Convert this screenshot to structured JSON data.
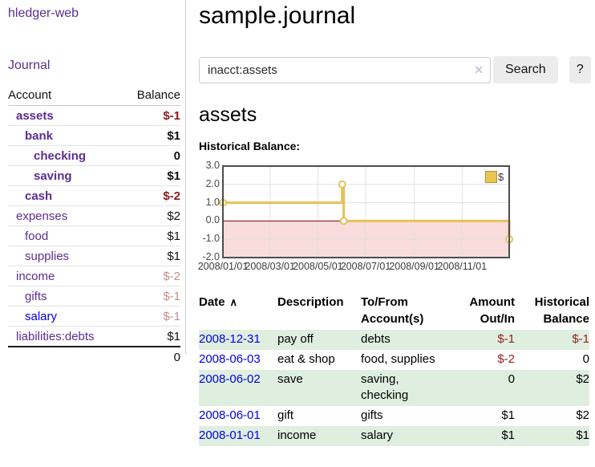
{
  "app": {
    "brand": "hledger-web",
    "nav": {
      "journal": "Journal"
    }
  },
  "sidebar": {
    "headers": {
      "account": "Account",
      "balance": "Balance"
    },
    "accounts": [
      {
        "name": "assets",
        "balance": "$-1",
        "indent": 1,
        "bold": true,
        "balance_style": "negative-strong"
      },
      {
        "name": "bank",
        "balance": "$1",
        "indent": 2,
        "bold": true,
        "balance_style": "normal"
      },
      {
        "name": "checking",
        "balance": "0",
        "indent": 3,
        "bold": true,
        "balance_style": "normal"
      },
      {
        "name": "saving",
        "balance": "$1",
        "indent": 3,
        "bold": true,
        "balance_style": "normal"
      },
      {
        "name": "cash",
        "balance": "$-2",
        "indent": 2,
        "bold": true,
        "balance_style": "negative-strong"
      },
      {
        "name": "expenses",
        "balance": "$2",
        "indent": 1,
        "bold": false,
        "balance_style": "normal"
      },
      {
        "name": "food",
        "balance": "$1",
        "indent": 2,
        "bold": false,
        "balance_style": "normal"
      },
      {
        "name": "supplies",
        "balance": "$1",
        "indent": 2,
        "bold": false,
        "balance_style": "normal"
      },
      {
        "name": "income",
        "balance": "$-2",
        "indent": 1,
        "bold": false,
        "balance_style": "negative-faded"
      },
      {
        "name": "gifts",
        "balance": "$-1",
        "indent": 2,
        "bold": false,
        "balance_style": "negative-faded"
      },
      {
        "name": "salary",
        "balance": "$-1",
        "indent": 2,
        "bold": false,
        "balance_style": "negative-faded",
        "link_state": "unvisited"
      },
      {
        "name": "liabilities:debts",
        "balance": "$1",
        "indent": 1,
        "bold": false,
        "balance_style": "normal"
      }
    ],
    "total": "0"
  },
  "header": {
    "title": "sample.journal"
  },
  "search": {
    "value": "inacct:assets",
    "clear_icon": "✕",
    "button_label": "Search",
    "help_label": "?"
  },
  "account_page": {
    "heading": "assets",
    "chart_title": "Historical Balance:"
  },
  "chart_data": {
    "type": "line",
    "title": "Historical Balance:",
    "step": "after",
    "series": [
      {
        "name": "$",
        "color": "#e5c257",
        "points": [
          {
            "date": "2008/01/01",
            "day": 0,
            "value": 1
          },
          {
            "date": "2008/06/01",
            "day": 152,
            "value": 2
          },
          {
            "date": "2008/06/03",
            "day": 154,
            "value": 0
          },
          {
            "date": "2008/12/31",
            "day": 365,
            "value": -1
          }
        ]
      }
    ],
    "ylim": [
      -2,
      3
    ],
    "yticks": [
      {
        "value": 3,
        "label": "3.0"
      },
      {
        "value": 2,
        "label": "2.0"
      },
      {
        "value": 1,
        "label": "1.0"
      },
      {
        "value": 0,
        "label": "0.0"
      },
      {
        "value": -1,
        "label": "-1.0"
      },
      {
        "value": -2,
        "label": "-2.0"
      }
    ],
    "xticks": [
      {
        "day": 0,
        "label": "2008/01/01"
      },
      {
        "day": 60,
        "label": "2008/03/01"
      },
      {
        "day": 121,
        "label": "2008/05/01"
      },
      {
        "day": 182,
        "label": "2008/07/01"
      },
      {
        "day": 244,
        "label": "2008/09/01"
      },
      {
        "day": 305,
        "label": "2008/11/01"
      }
    ],
    "x_span_days": 365,
    "grid": true,
    "legend": {
      "label": "$",
      "position": "top-right"
    },
    "negative_region_fill": "#f9dcdc",
    "zero_line_color": "#8b0000"
  },
  "register": {
    "sort_icon": "∧",
    "headers": [
      {
        "label": "Date",
        "sort": "ascending"
      },
      {
        "label": "Description"
      },
      {
        "label": "To/From\nAccount(s)"
      },
      {
        "label": "Amount\nOut/In",
        "align": "right"
      },
      {
        "label": "Historical\nBalance",
        "align": "right"
      }
    ],
    "rows": [
      {
        "date": "2008-12-31",
        "description": "pay off",
        "accounts": "debts",
        "amount": "$-1",
        "amount_negative": true,
        "balance": "$-1",
        "balance_negative": true
      },
      {
        "date": "2008-06-03",
        "description": "eat & shop",
        "accounts": "food, supplies",
        "amount": "$-2",
        "amount_negative": true,
        "balance": "0",
        "balance_negative": false
      },
      {
        "date": "2008-06-02",
        "description": "save",
        "accounts": "saving,\nchecking",
        "amount": "0",
        "amount_negative": false,
        "balance": "$2",
        "balance_negative": false
      },
      {
        "date": "2008-06-01",
        "description": "gift",
        "accounts": "gifts",
        "amount": "$1",
        "amount_negative": false,
        "balance": "$2",
        "balance_negative": false
      },
      {
        "date": "2008-01-01",
        "description": "income",
        "accounts": "salary",
        "amount": "$1",
        "amount_negative": false,
        "balance": "$1",
        "balance_negative": false
      }
    ]
  },
  "colors": {
    "link_purple": "#5c2d91",
    "link_blue": "#0000e6",
    "negative_strong": "#8b1a1a",
    "negative_faded": "#c88c8c",
    "table_negative": "#9b1c1c",
    "row_green": "#dfefdf",
    "chart_gold": "#e5c257",
    "chart_negative_bg": "#f9dcdc",
    "zero_line": "#8b0000",
    "button_bg": "#ececec"
  }
}
